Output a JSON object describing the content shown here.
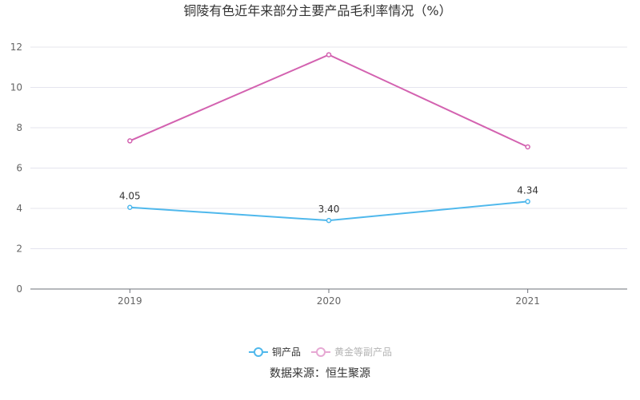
{
  "chart_data": {
    "type": "line",
    "title": "铜陵有色近年来部分主要产品毛利率情况（%）",
    "categories": [
      "2019",
      "2020",
      "2021"
    ],
    "ylim": [
      0,
      12
    ],
    "yticks": [
      "0",
      "2",
      "4",
      "6",
      "8",
      "10",
      "12"
    ],
    "grid": true,
    "legend_position": "bottom",
    "series": [
      {
        "name": "铜产品",
        "values": [
          4.05,
          3.4,
          4.34
        ],
        "labels": [
          "4.05",
          "3.40",
          "4.34"
        ],
        "color": "#4fb8ec"
      },
      {
        "name": "黄金等副产品",
        "values": [
          7.35,
          11.62,
          7.05
        ],
        "color": "#d362b0"
      }
    ],
    "source": "数据来源：恒生聚源"
  }
}
